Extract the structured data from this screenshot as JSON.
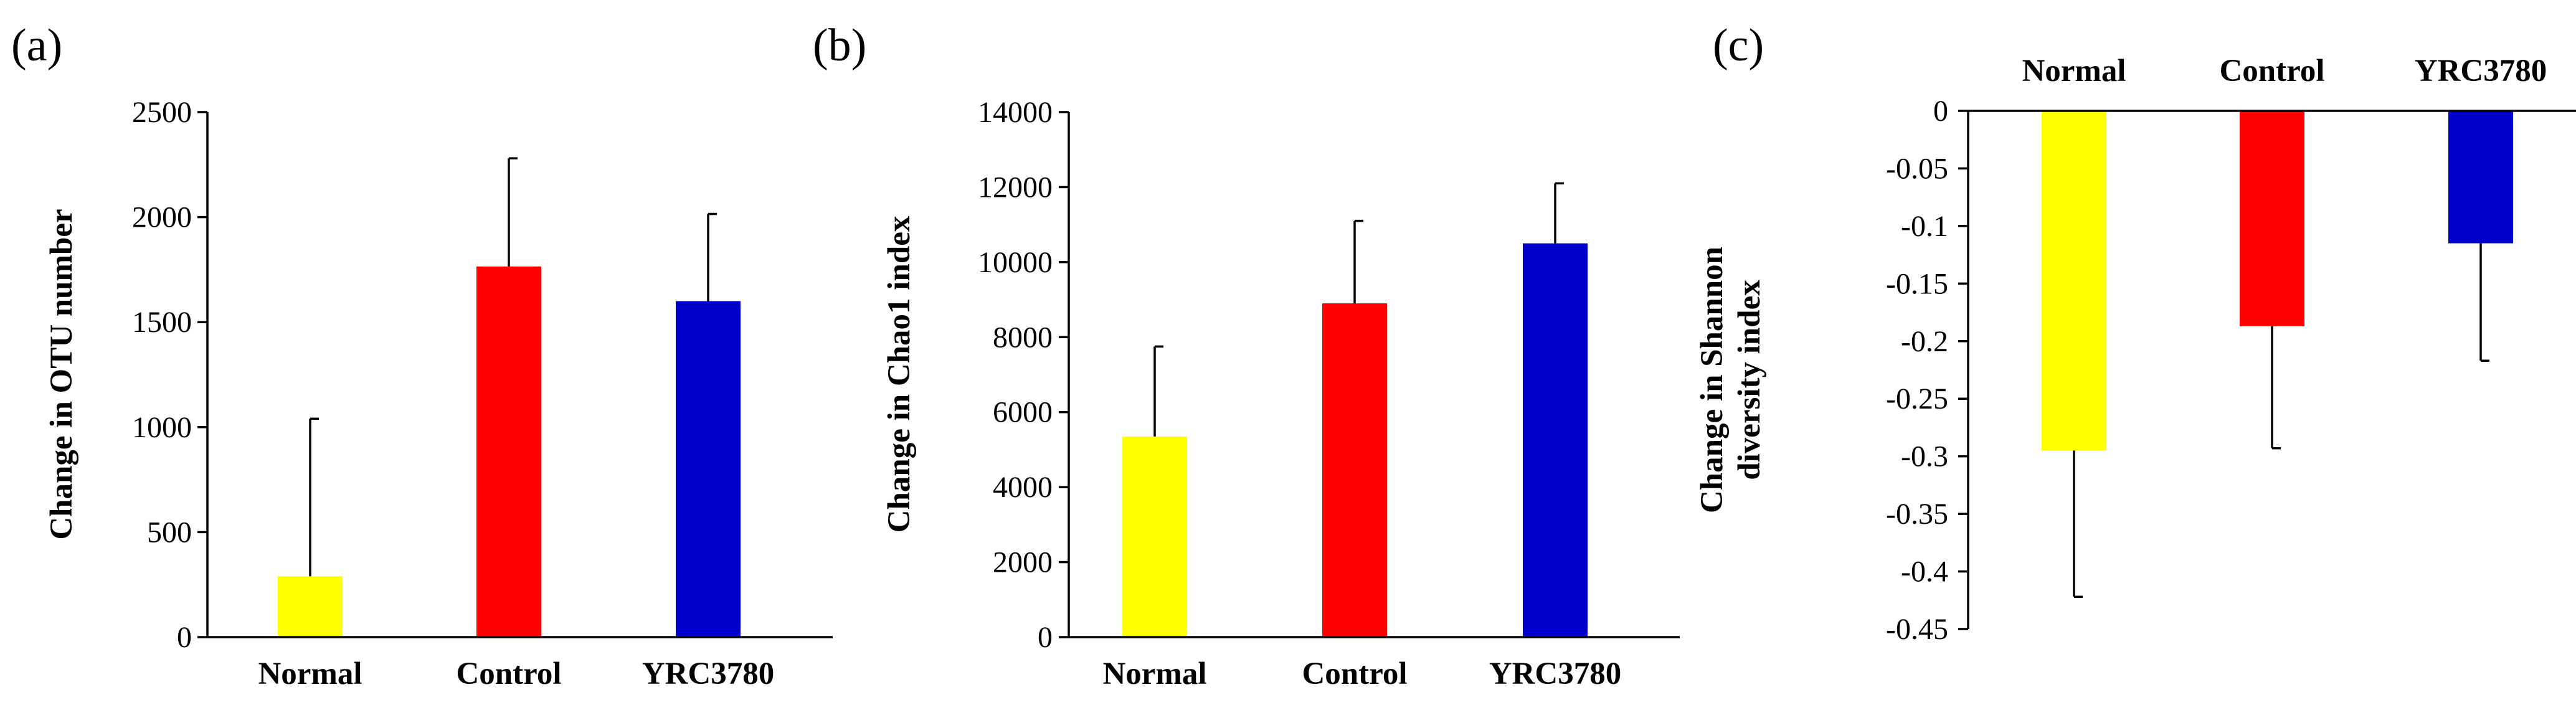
{
  "chart_data": [
    {
      "type": "bar",
      "panel_label": "(a)",
      "categories": [
        "Normal",
        "Control",
        "YRC3780"
      ],
      "values": [
        290,
        1765,
        1600
      ],
      "errors": [
        750,
        515,
        415
      ],
      "colors": [
        "#ffff00",
        "#ff0000",
        "#0000cc"
      ],
      "ylabel": "Change in OTU number",
      "ylabel_lines": [
        "Change in OTU number"
      ],
      "xlabel": "",
      "ylim": [
        0,
        2500
      ],
      "yticks": [
        0,
        500,
        1000,
        1500,
        2000,
        2500
      ],
      "ytick_labels": [
        "0",
        "500",
        "1000",
        "1500",
        "2000",
        "2500"
      ],
      "category_axis": "bottom",
      "grid": false
    },
    {
      "type": "bar",
      "panel_label": "(b)",
      "categories": [
        "Normal",
        "Control",
        "YRC3780"
      ],
      "values": [
        5350,
        8900,
        10500
      ],
      "errors": [
        2400,
        2200,
        1600
      ],
      "colors": [
        "#ffff00",
        "#ff0000",
        "#0000cc"
      ],
      "ylabel": "Change in Chao1 index",
      "ylabel_lines": [
        "Change in Chao1 index"
      ],
      "xlabel": "",
      "ylim": [
        0,
        14000
      ],
      "yticks": [
        0,
        2000,
        4000,
        6000,
        8000,
        10000,
        12000,
        14000
      ],
      "ytick_labels": [
        "0",
        "2000",
        "4000",
        "6000",
        "8000",
        "10000",
        "12000",
        "14000"
      ],
      "category_axis": "bottom",
      "grid": false
    },
    {
      "type": "bar",
      "panel_label": "(c)",
      "categories": [
        "Normal",
        "Control",
        "YRC3780"
      ],
      "values": [
        -0.295,
        -0.187,
        -0.115
      ],
      "errors": [
        0.127,
        0.106,
        0.102
      ],
      "colors": [
        "#ffff00",
        "#ff0000",
        "#0000cc"
      ],
      "ylabel": "Change in Shannon diversity index",
      "ylabel_lines": [
        "Change in Shannon",
        "diversity index"
      ],
      "xlabel": "",
      "ylim": [
        -0.45,
        0
      ],
      "yticks": [
        0,
        -0.05,
        -0.1,
        -0.15,
        -0.2,
        -0.25,
        -0.3,
        -0.35,
        -0.4,
        -0.45
      ],
      "ytick_labels": [
        "0",
        "-0.05",
        "-0.1",
        "-0.15",
        "-0.2",
        "-0.25",
        "-0.3",
        "-0.35",
        "-0.4",
        "-0.45"
      ],
      "category_axis": "top",
      "grid": false
    }
  ]
}
